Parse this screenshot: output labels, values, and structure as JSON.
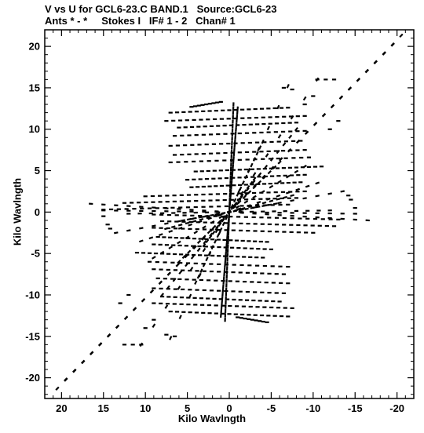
{
  "chart_data": {
    "type": "scatter",
    "title": "V vs U for GCL6-23.C BAND.1   Source:GCL6-23",
    "subtitle": "Ants * - *     Stokes I   IF# 1 - 2   Chan# 1",
    "xlabel": "Kilo Wavlngth",
    "ylabel": "Kilo Wavlngth",
    "xlim": [
      22,
      -22
    ],
    "ylim": [
      -22.5,
      22
    ],
    "x_reversed": true,
    "x_ticks": [
      20,
      15,
      10,
      5,
      0,
      -5,
      -10,
      -15,
      -20
    ],
    "x_tick_labels": [
      "20",
      "15",
      "10",
      "5",
      "0",
      "-5",
      "-10",
      "-15",
      "-20"
    ],
    "y_ticks": [
      20,
      15,
      10,
      5,
      0,
      -5,
      -10,
      -15,
      -20
    ],
    "y_tick_labels": [
      "20",
      "15",
      "10",
      "5",
      "0",
      "-5",
      "-10",
      "-15",
      "-20"
    ],
    "grid": false,
    "legend": "none",
    "marker_color": "#000000",
    "series": [
      {
        "tracks": [
          {
            "from": [
              -20.5,
              21.3
            ],
            "to": [
              20.5,
              -21.3
            ],
            "n": 40
          },
          {
            "from": [
              -19.5,
              20.2
            ],
            "to": [
              19.5,
              -20.2
            ],
            "n": 38
          },
          {
            "from": [
              -10.5,
              16.0
            ],
            "to": [
              10.5,
              -16.0
            ],
            "n": 14
          },
          {
            "from": [
              -1.0,
              12.5
            ],
            "to": [
              1.0,
              -12.5
            ],
            "n": 50
          },
          {
            "from": [
              -0.5,
              13.0
            ],
            "to": [
              0.5,
              -13.0
            ],
            "n": 50
          },
          {
            "from": [
              -7.0,
              15.2
            ],
            "to": [
              7.0,
              -15.2
            ],
            "n": 12
          },
          {
            "from": [
              -13.5,
              2.5
            ],
            "to": [
              13.5,
              -2.5
            ],
            "n": 18
          },
          {
            "from": [
              -12.0,
              0.2
            ],
            "to": [
              12.0,
              -0.2
            ],
            "n": 18
          },
          {
            "from": [
              -15.0,
              -0.2
            ],
            "to": [
              15.0,
              0.2
            ],
            "n": 20
          },
          {
            "from": [
              -16.5,
              -1.0
            ],
            "to": [
              16.5,
              1.0
            ],
            "n": 22
          },
          {
            "from": [
              -8.0,
              10.0
            ],
            "to": [
              8.0,
              -10.0
            ],
            "n": 22
          },
          {
            "from": [
              -6.0,
              6.0
            ],
            "to": [
              6.0,
              -6.0
            ],
            "n": 20
          },
          {
            "from": [
              -4.0,
              8.5
            ],
            "to": [
              4.0,
              -8.5
            ],
            "n": 24
          },
          {
            "from": [
              -3.0,
              4.0
            ],
            "to": [
              3.0,
              -4.0
            ],
            "n": 16
          },
          {
            "from": [
              -9.0,
              5.5
            ],
            "to": [
              9.0,
              -5.5
            ],
            "n": 18
          },
          {
            "from": [
              -10.5,
              3.5
            ],
            "to": [
              10.5,
              -3.5
            ],
            "n": 18
          },
          {
            "from": [
              -7.5,
              2.0
            ],
            "to": [
              7.5,
              -2.0
            ],
            "n": 18
          },
          {
            "from": [
              -5.5,
              1.0
            ],
            "to": [
              5.5,
              -1.0
            ],
            "n": 16
          }
        ],
        "fan_rows_top": [
          {
            "y": 13.0,
            "x_from": 4.5,
            "x_to": 1.0,
            "n": 8
          },
          {
            "y": 12.3,
            "x_from": 7.0,
            "x_to": -7.0,
            "n": 18
          },
          {
            "y": 11.3,
            "x_from": 7.5,
            "x_to": -9.0,
            "n": 20
          },
          {
            "y": 10.5,
            "x_from": 6.0,
            "x_to": -8.0,
            "n": 18
          },
          {
            "y": 9.5,
            "x_from": 6.5,
            "x_to": -9.0,
            "n": 18
          },
          {
            "y": 8.3,
            "x_from": 7.0,
            "x_to": -8.5,
            "n": 18
          },
          {
            "y": 7.2,
            "x_from": 6.5,
            "x_to": -9.0,
            "n": 18
          },
          {
            "y": 6.3,
            "x_from": 7.0,
            "x_to": -9.5,
            "n": 18
          },
          {
            "y": 5.2,
            "x_from": 4.0,
            "x_to": -11.0,
            "n": 20
          },
          {
            "y": 4.2,
            "x_from": 5.0,
            "x_to": -9.0,
            "n": 18
          },
          {
            "y": 3.3,
            "x_from": 4.5,
            "x_to": -8.5,
            "n": 18
          },
          {
            "y": 2.2,
            "x_from": 10.0,
            "x_to": -9.0,
            "n": 22
          },
          {
            "y": 1.4,
            "x_from": 12.5,
            "x_to": -8.0,
            "n": 24
          },
          {
            "y": 0.6,
            "x_from": 15.0,
            "x_to": -7.0,
            "n": 24
          }
        ],
        "fan_rows_bottom": [
          {
            "y": -0.6,
            "x_from": 9.0,
            "x_to": -13.0,
            "n": 24
          },
          {
            "y": -1.4,
            "x_from": 8.0,
            "x_to": -12.5,
            "n": 24
          },
          {
            "y": -2.2,
            "x_from": 9.0,
            "x_to": -10.0,
            "n": 22
          },
          {
            "y": -3.3,
            "x_from": 8.5,
            "x_to": -4.5,
            "n": 18
          },
          {
            "y": -4.2,
            "x_from": 9.0,
            "x_to": -5.0,
            "n": 18
          },
          {
            "y": -5.2,
            "x_from": 11.0,
            "x_to": -4.0,
            "n": 20
          },
          {
            "y": -6.3,
            "x_from": 9.5,
            "x_to": -7.0,
            "n": 18
          },
          {
            "y": -7.2,
            "x_from": 9.0,
            "x_to": -6.5,
            "n": 18
          },
          {
            "y": -8.3,
            "x_from": 8.5,
            "x_to": -7.0,
            "n": 18
          },
          {
            "y": -9.5,
            "x_from": 9.0,
            "x_to": -6.5,
            "n": 18
          },
          {
            "y": -10.5,
            "x_from": 8.0,
            "x_to": -6.0,
            "n": 18
          },
          {
            "y": -11.3,
            "x_from": 9.0,
            "x_to": -7.5,
            "n": 20
          },
          {
            "y": -12.3,
            "x_from": 7.0,
            "x_to": -7.0,
            "n": 18
          },
          {
            "y": -13.0,
            "x_from": -1.0,
            "x_to": -4.5,
            "n": 8
          }
        ],
        "extra_dashes": [
          [
            -10.5,
            16.0
          ],
          [
            -11.5,
            16.0
          ],
          [
            -12.5,
            16.0
          ],
          [
            10.5,
            -16.0
          ],
          [
            11.5,
            -16.0
          ],
          [
            12.5,
            -16.0
          ],
          [
            -6.5,
            15.0
          ],
          [
            -7.5,
            14.8
          ],
          [
            6.5,
            -15.0
          ],
          [
            7.5,
            -14.8
          ],
          [
            -14.5,
            1.5
          ],
          [
            -15.0,
            0.5
          ],
          [
            -14.2,
            2.0
          ],
          [
            14.5,
            -1.5
          ],
          [
            15.0,
            -0.5
          ],
          [
            14.2,
            -2.0
          ],
          [
            -9.0,
            13.0
          ],
          [
            -10.0,
            14.0
          ],
          [
            9.0,
            -13.0
          ],
          [
            10.0,
            -14.0
          ],
          [
            -12.0,
            10.0
          ],
          [
            -13.0,
            11.0
          ],
          [
            12.0,
            -10.0
          ],
          [
            13.0,
            -11.0
          ]
        ]
      }
    ]
  }
}
